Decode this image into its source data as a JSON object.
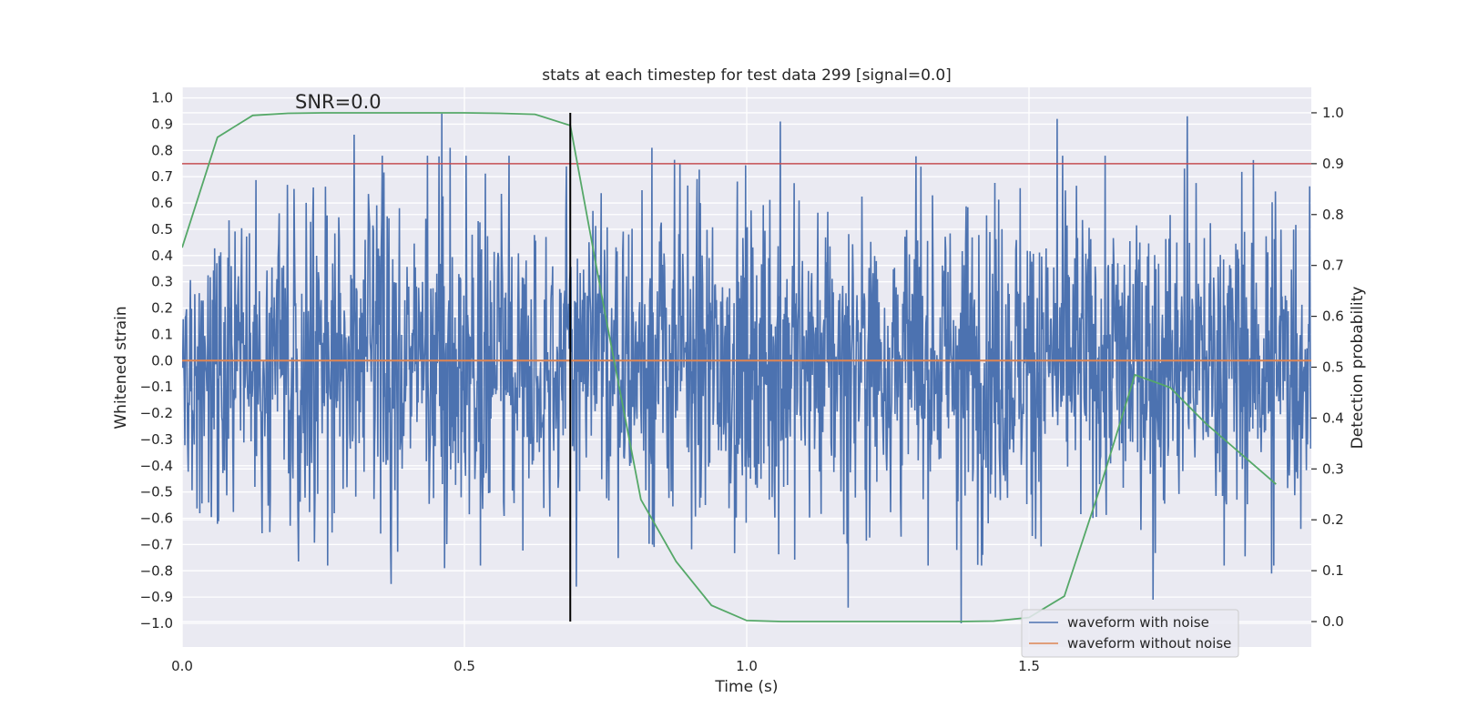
{
  "chart_data": {
    "type": "line",
    "title": "stats at each timestep for test data 299 [signal=0.0]",
    "xlabel": "Time (s)",
    "ylabel": "Whitened strain",
    "y2label": "Detection probability",
    "xlim": [
      0.0,
      2.0
    ],
    "ylim": [
      -1.09,
      1.04
    ],
    "y2lim": [
      -0.05,
      1.05
    ],
    "xticks": [
      0.0,
      0.5,
      1.0,
      1.5
    ],
    "xtick_labels": [
      "0.0",
      "0.5",
      "1.0",
      "1.5"
    ],
    "yticks": [
      -1.0,
      -0.9,
      -0.8,
      -0.7,
      -0.6,
      -0.5,
      -0.4,
      -0.3,
      -0.2,
      -0.1,
      0.0,
      0.1,
      0.2,
      0.3,
      0.4,
      0.5,
      0.6,
      0.7,
      0.8,
      0.9,
      1.0
    ],
    "ytick_labels": [
      "−1.0",
      "−0.9",
      "−0.8",
      "−0.7",
      "−0.6",
      "−0.5",
      "−0.4",
      "−0.3",
      "−0.2",
      "−0.1",
      "0.0",
      "0.1",
      "0.2",
      "0.3",
      "0.4",
      "0.5",
      "0.6",
      "0.7",
      "0.8",
      "0.9",
      "1.0"
    ],
    "y2ticks": [
      0.0,
      0.1,
      0.2,
      0.3,
      0.4,
      0.5,
      0.6,
      0.7,
      0.8,
      0.9,
      1.0
    ],
    "y2tick_labels": [
      "0.0",
      "0.1",
      "0.2",
      "0.3",
      "0.4",
      "0.5",
      "0.6",
      "0.7",
      "0.8",
      "0.9",
      "1.0"
    ],
    "grid": true,
    "legend_position": "lower right",
    "annotation": "SNR=0.0",
    "annotation_at": {
      "x": 0.2,
      "y": 0.96
    },
    "series": [
      {
        "name": "waveform with noise",
        "color": "#4c72b0",
        "axis": "left",
        "kind": "noise",
        "n_samples": 2048,
        "std": 0.3,
        "seed": 299,
        "sample_peaks": [
          {
            "x": 0.305,
            "y": 0.86
          },
          {
            "x": 0.46,
            "y": 0.94
          },
          {
            "x": 0.475,
            "y": 0.81
          },
          {
            "x": 0.37,
            "y": -0.85
          },
          {
            "x": 0.465,
            "y": -0.79
          },
          {
            "x": 0.698,
            "y": -0.86
          },
          {
            "x": 0.832,
            "y": 0.81
          },
          {
            "x": 1.06,
            "y": 0.91
          },
          {
            "x": 1.18,
            "y": -0.94
          },
          {
            "x": 1.38,
            "y": -1.0
          },
          {
            "x": 1.55,
            "y": 0.92
          },
          {
            "x": 1.78,
            "y": 0.93
          },
          {
            "x": 1.72,
            "y": -0.91
          },
          {
            "x": 1.93,
            "y": -0.81
          }
        ]
      },
      {
        "name": "waveform without noise",
        "color": "#dd8452",
        "axis": "left",
        "x": [
          0.0,
          2.0
        ],
        "y": [
          0.0,
          0.0
        ]
      },
      {
        "name": "detection probability",
        "color": "#55a868",
        "axis": "right",
        "x": [
          0.0,
          0.0625,
          0.125,
          0.1875,
          0.25,
          0.3125,
          0.375,
          0.4375,
          0.5,
          0.5625,
          0.625,
          0.6875,
          0.75,
          0.8125,
          0.875,
          0.9375,
          1.0,
          1.0625,
          1.125,
          1.1875,
          1.25,
          1.3125,
          1.375,
          1.4375,
          1.5,
          1.5625,
          1.625,
          1.6875,
          1.75,
          1.8125,
          1.875,
          1.9375
        ],
        "y": [
          0.735,
          0.952,
          0.995,
          0.999,
          1.0,
          1.0,
          1.0,
          1.0,
          1.0,
          0.999,
          0.997,
          0.975,
          0.6,
          0.24,
          0.118,
          0.032,
          0.002,
          0.0,
          0.0,
          0.0,
          0.0,
          0.0,
          0.0,
          0.001,
          0.008,
          0.05,
          0.26,
          0.485,
          0.46,
          0.39,
          0.33,
          0.27
        ]
      }
    ],
    "threshold": {
      "value": 0.9,
      "axis": "right",
      "color": "#c44e52"
    },
    "vline": {
      "x": 0.6875,
      "color": "#000000",
      "y2range": [
        0.0,
        1.0
      ]
    }
  },
  "legend": {
    "items": [
      {
        "label": "waveform with noise",
        "color": "#4c72b0"
      },
      {
        "label": "waveform without noise",
        "color": "#dd8452"
      }
    ]
  }
}
